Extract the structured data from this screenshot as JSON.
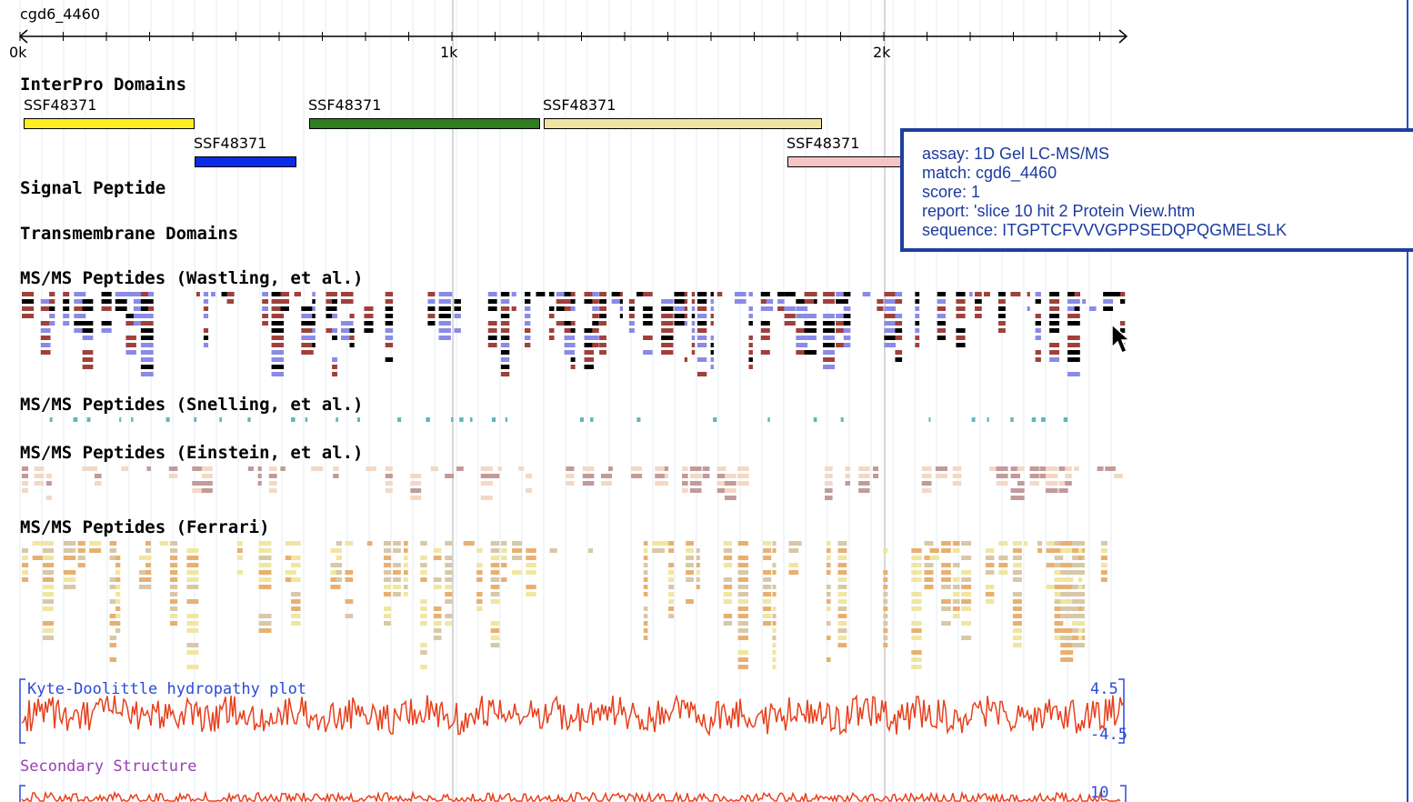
{
  "sequence_name": "cgd6_4460",
  "ruler": {
    "ticks": [
      "0k",
      "1k",
      "2k"
    ]
  },
  "tracks": {
    "interpro": "InterPro Domains",
    "signal": "Signal Peptide",
    "transmembrane": "Transmembrane Domains",
    "wastling": "MS/MS Peptides (Wastling, et al.)",
    "snelling": "MS/MS Peptides (Snelling, et al.)",
    "einstein": "MS/MS Peptides (Einstein, et al.)",
    "ferrari": "MS/MS Peptides (Ferrari)"
  },
  "domains": [
    {
      "label": "SSF48371",
      "color": "#ffee22"
    },
    {
      "label": "SSF48371",
      "color": "#0a2be8"
    },
    {
      "label": "SSF48371",
      "color": "#2e7d1e"
    },
    {
      "label": "SSF48371",
      "color": "#f0e4a0"
    },
    {
      "label": "SSF48371",
      "color": "#f7c4c4"
    }
  ],
  "hydropathy": {
    "title": "Kyte-Doolittle hydropathy plot",
    "max_label": "4.5",
    "min_label": "-4.5",
    "line_color": "#e8401c"
  },
  "secondary": {
    "title": "Secondary Structure",
    "max_label": "10"
  },
  "tooltip": {
    "assay": "assay: 1D Gel LC-MS/MS",
    "match": "match: cgd6_4460",
    "score": "score: 1",
    "report": "report: 'slice 10 hit 2 Protein View.htm",
    "sequence": "sequence: ITGPTCFVVVGPPSEDQPQGMELSLK"
  },
  "colors": {
    "wastling": [
      "#000000",
      "#8a8ae8",
      "#a0403a"
    ],
    "snelling": "#5fb8b8",
    "einstein": [
      "#c29a9a",
      "#f3d8c4"
    ],
    "ferrari": [
      "#f0e6a0",
      "#e8b070",
      "#d8c8a8"
    ]
  }
}
